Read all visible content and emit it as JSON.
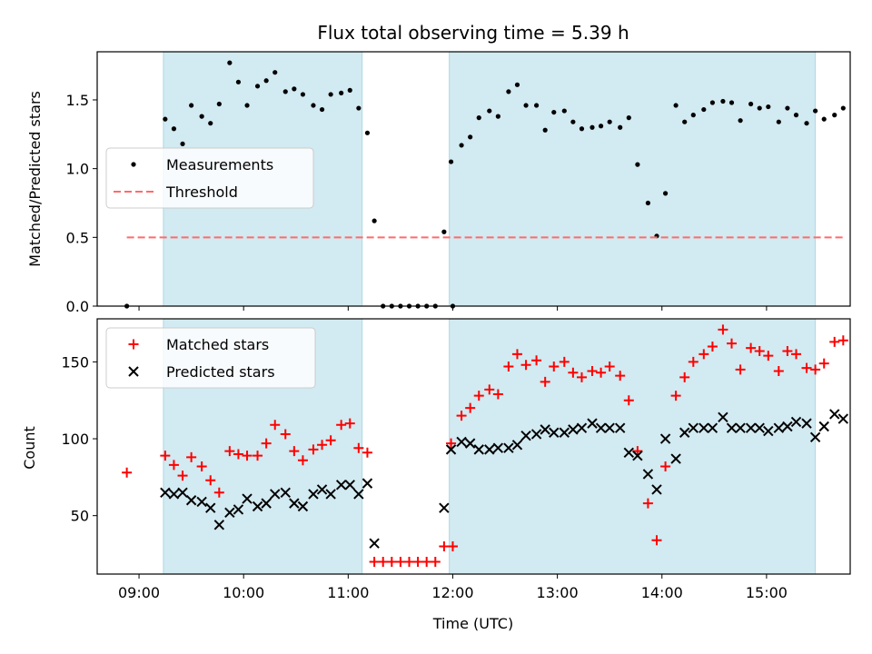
{
  "chart_data": [
    {
      "type": "scatter",
      "title": "Flux total observing time = 5.39 h",
      "xlabel": "",
      "ylabel": "Matched/Predicted stars",
      "ylim": [
        0,
        1.85
      ],
      "yticks": [
        "0.0",
        "0.5",
        "1.0",
        "1.5"
      ],
      "xlim": [
        "08:36",
        "15:48"
      ],
      "grid": false,
      "legend": "center-left",
      "shaded_intervals": [
        [
          "09:14",
          "11:08"
        ],
        [
          "11:58",
          "15:28"
        ]
      ],
      "shade_color": "#add8e6",
      "series": [
        {
          "name": "Measurements",
          "color": "#000000",
          "marker": "dot",
          "points": [
            [
              "08:53",
              0.0
            ],
            [
              "09:15",
              1.36
            ],
            [
              "09:20",
              1.29
            ],
            [
              "09:25",
              1.18
            ],
            [
              "09:30",
              1.46
            ],
            [
              "09:36",
              1.38
            ],
            [
              "09:41",
              1.33
            ],
            [
              "09:46",
              1.47
            ],
            [
              "09:52",
              1.77
            ],
            [
              "09:57",
              1.63
            ],
            [
              "10:02",
              1.46
            ],
            [
              "10:08",
              1.6
            ],
            [
              "10:13",
              1.64
            ],
            [
              "10:18",
              1.7
            ],
            [
              "10:24",
              1.56
            ],
            [
              "10:29",
              1.58
            ],
            [
              "10:34",
              1.54
            ],
            [
              "10:40",
              1.46
            ],
            [
              "10:45",
              1.43
            ],
            [
              "10:50",
              1.54
            ],
            [
              "10:56",
              1.55
            ],
            [
              "11:01",
              1.57
            ],
            [
              "11:06",
              1.44
            ],
            [
              "11:11",
              1.26
            ],
            [
              "11:15",
              0.62
            ],
            [
              "11:20",
              0.0
            ],
            [
              "11:25",
              0.0
            ],
            [
              "11:30",
              0.0
            ],
            [
              "11:35",
              0.0
            ],
            [
              "11:40",
              0.0
            ],
            [
              "11:45",
              0.0
            ],
            [
              "11:50",
              0.0
            ],
            [
              "11:55",
              0.54
            ],
            [
              "12:00",
              0.0
            ],
            [
              "11:59",
              1.05
            ],
            [
              "12:05",
              1.17
            ],
            [
              "12:10",
              1.23
            ],
            [
              "12:15",
              1.37
            ],
            [
              "12:21",
              1.42
            ],
            [
              "12:26",
              1.38
            ],
            [
              "12:32",
              1.56
            ],
            [
              "12:37",
              1.61
            ],
            [
              "12:42",
              1.46
            ],
            [
              "12:48",
              1.46
            ],
            [
              "12:53",
              1.28
            ],
            [
              "12:58",
              1.41
            ],
            [
              "13:04",
              1.42
            ],
            [
              "13:09",
              1.34
            ],
            [
              "13:14",
              1.29
            ],
            [
              "13:20",
              1.3
            ],
            [
              "13:25",
              1.31
            ],
            [
              "13:30",
              1.34
            ],
            [
              "13:36",
              1.3
            ],
            [
              "13:41",
              1.37
            ],
            [
              "13:46",
              1.03
            ],
            [
              "13:52",
              0.75
            ],
            [
              "13:57",
              0.51
            ],
            [
              "14:02",
              0.82
            ],
            [
              "14:08",
              1.46
            ],
            [
              "14:13",
              1.34
            ],
            [
              "14:18",
              1.39
            ],
            [
              "14:24",
              1.43
            ],
            [
              "14:29",
              1.48
            ],
            [
              "14:35",
              1.49
            ],
            [
              "14:40",
              1.48
            ],
            [
              "14:45",
              1.35
            ],
            [
              "14:51",
              1.47
            ],
            [
              "14:56",
              1.44
            ],
            [
              "15:01",
              1.45
            ],
            [
              "15:07",
              1.34
            ],
            [
              "15:12",
              1.44
            ],
            [
              "15:17",
              1.39
            ],
            [
              "15:23",
              1.33
            ],
            [
              "15:28",
              1.42
            ],
            [
              "15:33",
              1.36
            ],
            [
              "15:39",
              1.39
            ],
            [
              "15:44",
              1.44
            ]
          ]
        },
        {
          "name": "Threshold",
          "color": "#ff6b6b",
          "style": "dashed",
          "points": [
            [
              "08:53",
              0.5
            ],
            [
              "15:44",
              0.5
            ]
          ]
        }
      ]
    },
    {
      "type": "scatter",
      "title": "",
      "xlabel": "Time (UTC)",
      "ylabel": "Count",
      "ylim": [
        12,
        178
      ],
      "yticks": [
        "50",
        "100",
        "150"
      ],
      "xticks": [
        "09:00",
        "10:00",
        "11:00",
        "12:00",
        "13:00",
        "14:00",
        "15:00"
      ],
      "xlim": [
        "08:36",
        "15:48"
      ],
      "grid": false,
      "legend": "top-left",
      "shaded_intervals": [
        [
          "09:14",
          "11:08"
        ],
        [
          "11:58",
          "15:28"
        ]
      ],
      "shade_color": "#add8e6",
      "series": [
        {
          "name": "Matched stars",
          "color": "#ff0000",
          "marker": "plus",
          "points": [
            [
              "08:53",
              78
            ],
            [
              "09:15",
              89
            ],
            [
              "09:20",
              83
            ],
            [
              "09:25",
              76
            ],
            [
              "09:30",
              88
            ],
            [
              "09:36",
              82
            ],
            [
              "09:41",
              73
            ],
            [
              "09:46",
              65
            ],
            [
              "09:52",
              92
            ],
            [
              "09:57",
              90
            ],
            [
              "10:02",
              89
            ],
            [
              "10:08",
              89
            ],
            [
              "10:13",
              97
            ],
            [
              "10:18",
              109
            ],
            [
              "10:24",
              103
            ],
            [
              "10:29",
              92
            ],
            [
              "10:34",
              86
            ],
            [
              "10:40",
              93
            ],
            [
              "10:45",
              96
            ],
            [
              "10:50",
              99
            ],
            [
              "10:56",
              109
            ],
            [
              "11:01",
              110
            ],
            [
              "11:06",
              94
            ],
            [
              "11:11",
              91
            ],
            [
              "11:15",
              20
            ],
            [
              "11:20",
              20
            ],
            [
              "11:25",
              20
            ],
            [
              "11:30",
              20
            ],
            [
              "11:35",
              20
            ],
            [
              "11:40",
              20
            ],
            [
              "11:45",
              20
            ],
            [
              "11:50",
              20
            ],
            [
              "11:55",
              30
            ],
            [
              "12:00",
              30
            ],
            [
              "11:59",
              97
            ],
            [
              "12:05",
              115
            ],
            [
              "12:10",
              120
            ],
            [
              "12:15",
              128
            ],
            [
              "12:21",
              132
            ],
            [
              "12:26",
              129
            ],
            [
              "12:32",
              147
            ],
            [
              "12:37",
              155
            ],
            [
              "12:42",
              148
            ],
            [
              "12:48",
              151
            ],
            [
              "12:53",
              137
            ],
            [
              "12:58",
              147
            ],
            [
              "13:04",
              150
            ],
            [
              "13:09",
              143
            ],
            [
              "13:14",
              140
            ],
            [
              "13:20",
              144
            ],
            [
              "13:25",
              143
            ],
            [
              "13:30",
              147
            ],
            [
              "13:36",
              141
            ],
            [
              "13:41",
              125
            ],
            [
              "13:46",
              92
            ],
            [
              "13:52",
              58
            ],
            [
              "13:57",
              34
            ],
            [
              "14:02",
              82
            ],
            [
              "14:08",
              128
            ],
            [
              "14:13",
              140
            ],
            [
              "14:18",
              150
            ],
            [
              "14:24",
              155
            ],
            [
              "14:29",
              160
            ],
            [
              "14:35",
              171
            ],
            [
              "14:40",
              162
            ],
            [
              "14:45",
              145
            ],
            [
              "14:51",
              159
            ],
            [
              "14:56",
              157
            ],
            [
              "15:01",
              154
            ],
            [
              "15:07",
              144
            ],
            [
              "15:12",
              157
            ],
            [
              "15:17",
              155
            ],
            [
              "15:23",
              146
            ],
            [
              "15:28",
              145
            ],
            [
              "15:33",
              149
            ],
            [
              "15:39",
              163
            ],
            [
              "15:44",
              164
            ]
          ]
        },
        {
          "name": "Predicted stars",
          "color": "#000000",
          "marker": "x",
          "points": [
            [
              "09:15",
              65
            ],
            [
              "09:20",
              64
            ],
            [
              "09:25",
              65
            ],
            [
              "09:30",
              60
            ],
            [
              "09:36",
              59
            ],
            [
              "09:41",
              55
            ],
            [
              "09:46",
              44
            ],
            [
              "09:52",
              52
            ],
            [
              "09:57",
              54
            ],
            [
              "10:02",
              61
            ],
            [
              "10:08",
              56
            ],
            [
              "10:13",
              58
            ],
            [
              "10:18",
              64
            ],
            [
              "10:24",
              65
            ],
            [
              "10:29",
              58
            ],
            [
              "10:34",
              56
            ],
            [
              "10:40",
              64
            ],
            [
              "10:45",
              67
            ],
            [
              "10:50",
              64
            ],
            [
              "10:56",
              70
            ],
            [
              "11:01",
              70
            ],
            [
              "11:06",
              64
            ],
            [
              "11:11",
              71
            ],
            [
              "11:15",
              32
            ],
            [
              "11:55",
              55
            ],
            [
              "11:59",
              93
            ],
            [
              "12:05",
              98
            ],
            [
              "12:10",
              97
            ],
            [
              "12:15",
              93
            ],
            [
              "12:21",
              93
            ],
            [
              "12:26",
              94
            ],
            [
              "12:32",
              94
            ],
            [
              "12:37",
              96
            ],
            [
              "12:42",
              102
            ],
            [
              "12:48",
              103
            ],
            [
              "12:53",
              106
            ],
            [
              "12:58",
              104
            ],
            [
              "13:04",
              104
            ],
            [
              "13:09",
              106
            ],
            [
              "13:14",
              107
            ],
            [
              "13:20",
              110
            ],
            [
              "13:25",
              107
            ],
            [
              "13:30",
              107
            ],
            [
              "13:36",
              107
            ],
            [
              "13:41",
              91
            ],
            [
              "13:46",
              89
            ],
            [
              "13:52",
              77
            ],
            [
              "13:57",
              67
            ],
            [
              "14:02",
              100
            ],
            [
              "14:08",
              87
            ],
            [
              "14:13",
              104
            ],
            [
              "14:18",
              107
            ],
            [
              "14:24",
              107
            ],
            [
              "14:29",
              107
            ],
            [
              "14:35",
              114
            ],
            [
              "14:40",
              107
            ],
            [
              "14:45",
              107
            ],
            [
              "14:51",
              107
            ],
            [
              "14:56",
              107
            ],
            [
              "15:01",
              105
            ],
            [
              "15:07",
              107
            ],
            [
              "15:12",
              108
            ],
            [
              "15:17",
              111
            ],
            [
              "15:23",
              110
            ],
            [
              "15:28",
              101
            ],
            [
              "15:33",
              108
            ],
            [
              "15:39",
              116
            ],
            [
              "15:44",
              113
            ]
          ]
        }
      ]
    }
  ]
}
